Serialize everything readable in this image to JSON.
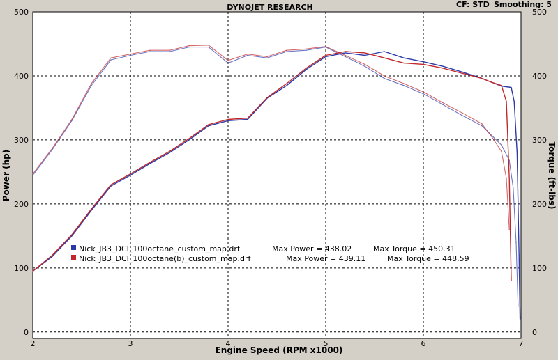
{
  "header": {
    "title": "DYNOJET RESEARCH",
    "cf_label": "CF: STD",
    "smoothing_label": "Smoothing: 5"
  },
  "chart_data": {
    "type": "line",
    "xlabel": "Engine Speed (RPM x1000)",
    "ylabel_left": "Power (hp)",
    "ylabel_right": "Torque (ft-lbs)",
    "xlim": [
      2,
      7
    ],
    "ylim": [
      -10,
      500
    ],
    "x_ticks": [
      "2",
      "3",
      "4",
      "5",
      "6",
      "7"
    ],
    "y_ticks": [
      "0",
      "100",
      "200",
      "300",
      "400",
      "500"
    ],
    "grid": true,
    "legend_position": "bottom-left",
    "colors": {
      "run1": "#2c3aa8",
      "run2": "#c0282c",
      "background": "#ffffff",
      "frame": "#d4d0c8"
    },
    "series": [
      {
        "name": "Nick_JB3_DCI_100octane_custom_map.drf",
        "max_power_text": "Max Power = 438.02",
        "max_torque_text": "Max Torque = 450.31",
        "color": "#2c3aa8",
        "power": {
          "x": [
            2.0,
            2.2,
            2.4,
            2.6,
            2.8,
            3.0,
            3.2,
            3.4,
            3.6,
            3.8,
            4.0,
            4.2,
            4.4,
            4.6,
            4.8,
            5.0,
            5.2,
            5.4,
            5.6,
            5.8,
            6.0,
            6.2,
            6.4,
            6.6,
            6.8,
            6.9,
            6.93,
            6.96,
            6.98,
            6.99
          ],
          "y": [
            95,
            118,
            150,
            190,
            228,
            245,
            263,
            280,
            300,
            322,
            330,
            332,
            365,
            385,
            410,
            430,
            436,
            432,
            438,
            428,
            422,
            415,
            406,
            396,
            384,
            382,
            360,
            280,
            120,
            20
          ]
        },
        "torque": {
          "x": [
            2.0,
            2.2,
            2.4,
            2.6,
            2.8,
            3.0,
            3.2,
            3.4,
            3.6,
            3.8,
            4.0,
            4.2,
            4.4,
            4.6,
            4.8,
            5.0,
            5.2,
            5.4,
            5.6,
            5.8,
            6.0,
            6.2,
            6.4,
            6.6,
            6.8,
            6.88,
            6.92,
            6.95,
            6.97
          ],
          "y": [
            245,
            285,
            330,
            385,
            425,
            432,
            438,
            438,
            445,
            445,
            420,
            432,
            428,
            438,
            440,
            445,
            430,
            415,
            396,
            385,
            372,
            355,
            338,
            322,
            292,
            268,
            225,
            140,
            40
          ]
        }
      },
      {
        "name": "Nick_JB3_DCI_100octane(b)_custom_map.drf",
        "max_power_text": "Max Power = 439.11",
        "max_torque_text": "Max Torque = 448.59",
        "color": "#c0282c",
        "power": {
          "x": [
            2.0,
            2.2,
            2.4,
            2.6,
            2.8,
            3.0,
            3.2,
            3.4,
            3.6,
            3.8,
            4.0,
            4.2,
            4.4,
            4.6,
            4.8,
            5.0,
            5.2,
            5.4,
            5.6,
            5.8,
            6.0,
            6.2,
            6.4,
            6.6,
            6.7,
            6.8,
            6.85,
            6.88,
            6.9
          ],
          "y": [
            95,
            120,
            152,
            192,
            230,
            247,
            265,
            282,
            302,
            324,
            332,
            334,
            366,
            388,
            412,
            432,
            438,
            436,
            428,
            420,
            418,
            412,
            404,
            396,
            390,
            385,
            360,
            240,
            80
          ]
        },
        "torque": {
          "x": [
            2.0,
            2.2,
            2.4,
            2.6,
            2.8,
            3.0,
            3.2,
            3.4,
            3.6,
            3.8,
            4.0,
            4.2,
            4.4,
            4.6,
            4.8,
            5.0,
            5.2,
            5.4,
            5.6,
            5.8,
            6.0,
            6.2,
            6.4,
            6.6,
            6.7,
            6.8,
            6.85,
            6.88
          ],
          "y": [
            247,
            287,
            332,
            388,
            428,
            434,
            440,
            440,
            447,
            448,
            424,
            434,
            430,
            440,
            442,
            446,
            432,
            418,
            400,
            388,
            375,
            358,
            342,
            325,
            305,
            282,
            240,
            160
          ]
        }
      }
    ]
  }
}
